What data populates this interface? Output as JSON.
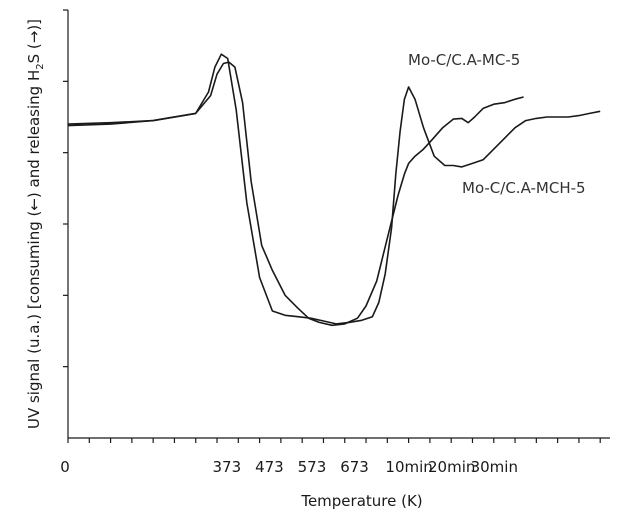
{
  "chart_data": {
    "type": "line",
    "title": "",
    "xlabel": "Temperature (K)",
    "ylabel_parts": {
      "before_sub": "UV signal (u.a.) [consuming (←) and releasing H",
      "sub": "2",
      "after_sub": "S (→)]"
    },
    "x_tick_labels": [
      "0",
      "373",
      "473",
      "573",
      "673",
      "10min",
      "20min",
      "30min"
    ],
    "x_tick_values": [
      0,
      373,
      473,
      573,
      673,
      773,
      873,
      973
    ],
    "xlim": [
      0,
      1273
    ],
    "ylim": [
      0,
      6
    ],
    "y_tick_values": [
      1,
      2,
      3,
      4,
      5,
      6
    ],
    "grid": false,
    "legend": "direct labels",
    "series": [
      {
        "name": "Mo-C/C.A-MC-5",
        "x": [
          0,
          100,
          200,
          300,
          335,
          350,
          365,
          378,
          392,
          410,
          430,
          455,
          480,
          510,
          540,
          565,
          590,
          620,
          650,
          680,
          700,
          725,
          750,
          775,
          790,
          800,
          815,
          835,
          855,
          880,
          905,
          925,
          940,
          955,
          975,
          1000,
          1025,
          1050,
          1070
        ],
        "y": [
          4.4,
          4.42,
          4.45,
          4.55,
          4.8,
          5.1,
          5.25,
          5.27,
          5.2,
          4.7,
          3.6,
          2.7,
          2.35,
          2.0,
          1.82,
          1.68,
          1.62,
          1.58,
          1.6,
          1.68,
          1.85,
          2.2,
          2.8,
          3.4,
          3.7,
          3.85,
          3.95,
          4.05,
          4.18,
          4.35,
          4.47,
          4.48,
          4.42,
          4.5,
          4.62,
          4.68,
          4.7,
          4.75,
          4.78
        ]
      },
      {
        "name": "Mo-C/C.A-MCH-5",
        "x": [
          0,
          100,
          200,
          300,
          330,
          345,
          360,
          375,
          395,
          420,
          450,
          480,
          510,
          540,
          570,
          600,
          630,
          660,
          690,
          715,
          730,
          745,
          760,
          770,
          780,
          790,
          800,
          815,
          835,
          860,
          885,
          905,
          925,
          950,
          975,
          1000,
          1025,
          1050,
          1075,
          1100,
          1125,
          1150,
          1175,
          1200,
          1225,
          1250
        ],
        "y": [
          4.38,
          4.4,
          4.45,
          4.55,
          4.85,
          5.2,
          5.38,
          5.32,
          4.6,
          3.3,
          2.25,
          1.78,
          1.72,
          1.7,
          1.68,
          1.64,
          1.6,
          1.62,
          1.65,
          1.7,
          1.9,
          2.3,
          2.95,
          3.7,
          4.3,
          4.75,
          4.92,
          4.75,
          4.35,
          3.95,
          3.82,
          3.82,
          3.8,
          3.85,
          3.9,
          4.05,
          4.2,
          4.35,
          4.45,
          4.48,
          4.5,
          4.5,
          4.5,
          4.52,
          4.55,
          4.58
        ]
      }
    ],
    "annotations": [
      {
        "text": "Mo-C/C.A-MC-5"
      },
      {
        "text": "Mo-C/C.A-MCH-5"
      }
    ]
  }
}
